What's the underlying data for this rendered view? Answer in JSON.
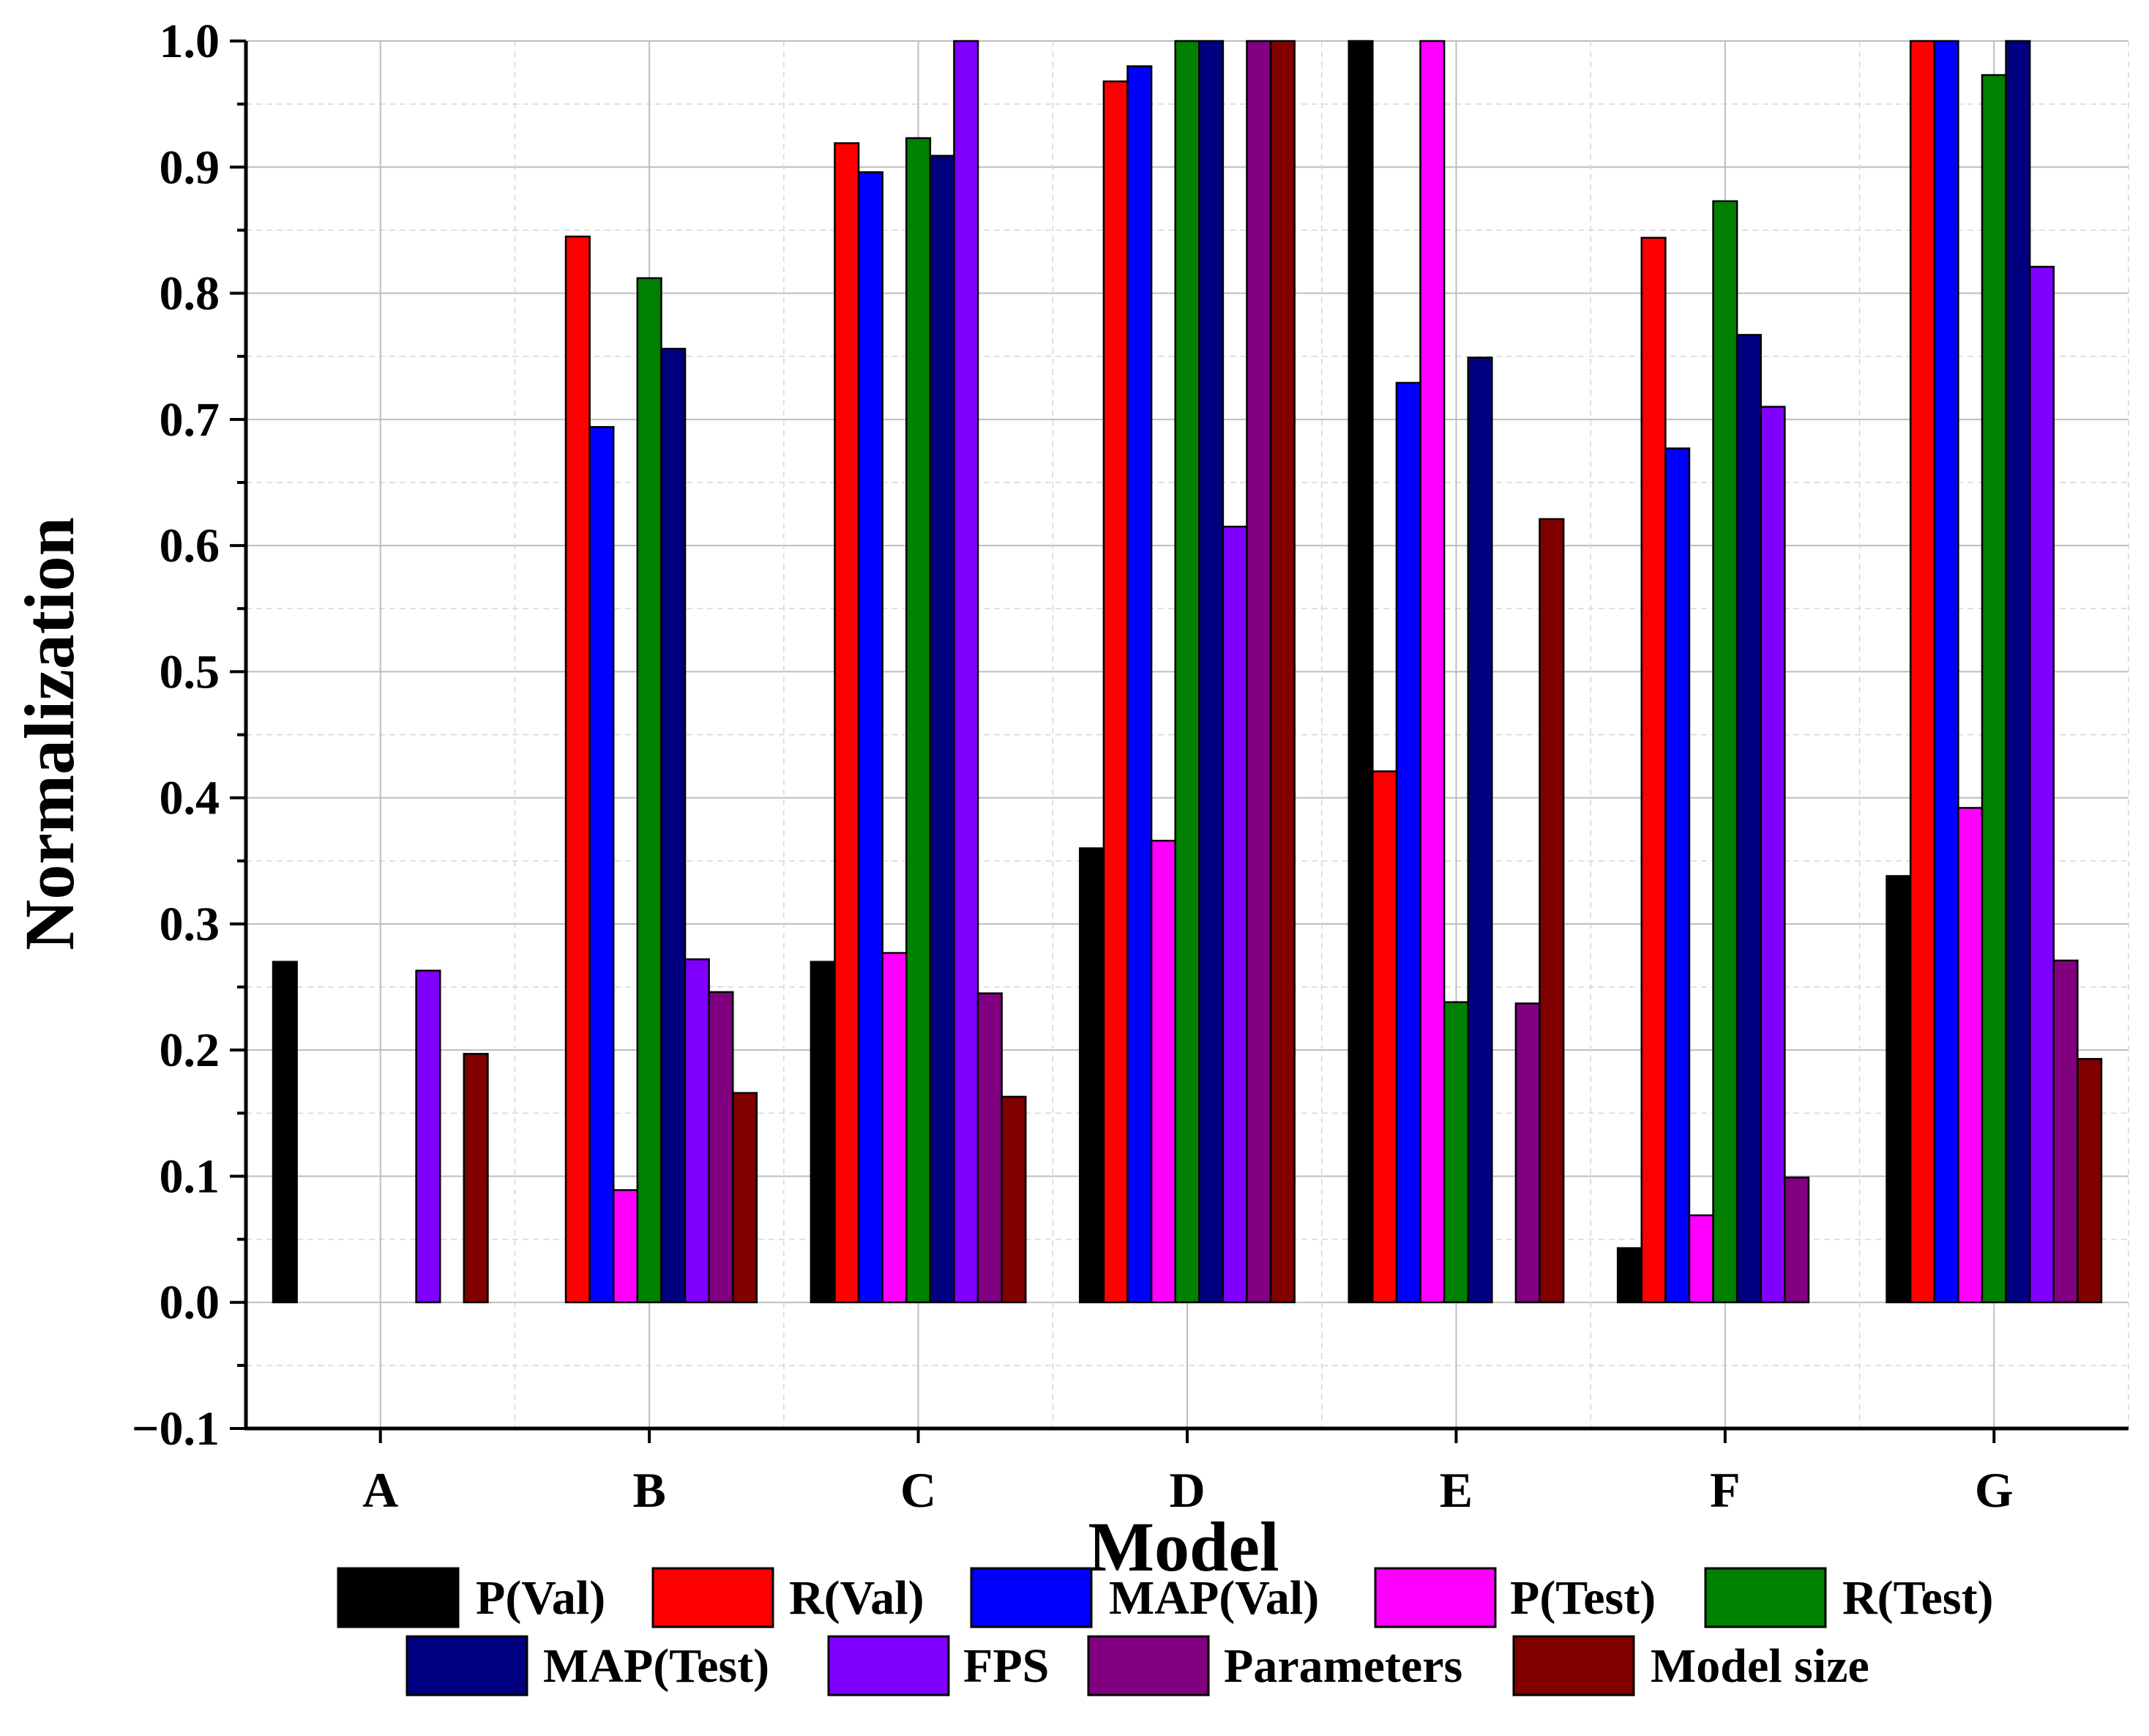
{
  "chart_data": {
    "type": "bar",
    "title": "",
    "xlabel": "Model",
    "ylabel": "Normalization",
    "ylim": [
      -0.1,
      1.0
    ],
    "yticks": [
      "−0.1",
      "0.0",
      "0.1",
      "0.2",
      "0.3",
      "0.4",
      "0.5",
      "0.6",
      "0.7",
      "0.8",
      "0.9",
      "1.0"
    ],
    "grid": true,
    "legend_position": "bottom",
    "categories": [
      "A",
      "B",
      "C",
      "D",
      "E",
      "F",
      "G"
    ],
    "series": [
      {
        "name": "P(Val)",
        "color": "#000000",
        "values": [
          0.27,
          0.0,
          0.27,
          0.36,
          1.0,
          0.043,
          0.338
        ]
      },
      {
        "name": "R(Val)",
        "color": "#ff0000",
        "values": [
          0.0,
          0.845,
          0.919,
          0.968,
          0.421,
          0.844,
          1.0
        ]
      },
      {
        "name": "MAP(Val)",
        "color": "#0000ff",
        "values": [
          0.0,
          0.694,
          0.896,
          0.98,
          0.729,
          0.677,
          1.0
        ]
      },
      {
        "name": "P(Test)",
        "color": "#ff00ff",
        "values": [
          0.0,
          0.089,
          0.277,
          0.366,
          1.0,
          0.069,
          0.392
        ]
      },
      {
        "name": "R(Test)",
        "color": "#008000",
        "values": [
          0.0,
          0.812,
          0.923,
          1.0,
          0.238,
          0.873,
          0.973
        ]
      },
      {
        "name": "MAP(Test)",
        "color": "#000080",
        "values": [
          0.0,
          0.756,
          0.909,
          1.0,
          0.749,
          0.767,
          1.0
        ]
      },
      {
        "name": "FPS",
        "color": "#8000ff",
        "values": [
          0.263,
          0.272,
          1.0,
          0.615,
          0.0,
          0.71,
          0.821
        ]
      },
      {
        "name": "Parameters",
        "color": "#800080",
        "values": [
          0.0,
          0.246,
          0.245,
          1.0,
          0.237,
          0.099,
          0.271
        ]
      },
      {
        "name": "Model size",
        "color": "#800000",
        "values": [
          0.197,
          0.166,
          0.163,
          1.0,
          0.621,
          0.0,
          0.193
        ]
      }
    ]
  }
}
